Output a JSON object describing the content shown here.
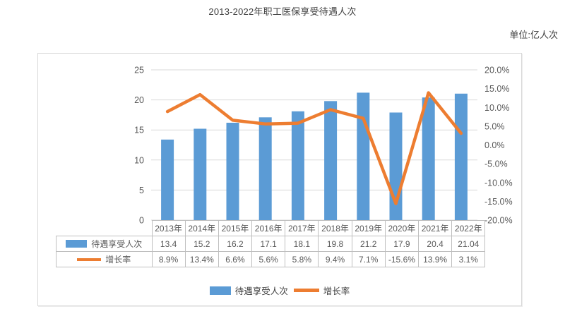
{
  "title": "2013-2022年职工医保享受待遇人次",
  "unit_label": "单位:亿人次",
  "chart_data": {
    "type": "bar+line combo with data table",
    "categories": [
      "2013年",
      "2014年",
      "2015年",
      "2016年",
      "2017年",
      "2018年",
      "2019年",
      "2020年",
      "2021年",
      "2022年"
    ],
    "series": [
      {
        "name": "待遇享受人次",
        "chart": "bar",
        "color": "#5B9BD5",
        "axis": "left",
        "values": [
          13.4,
          15.2,
          16.2,
          17.1,
          18.1,
          19.8,
          21.2,
          17.9,
          20.4,
          21.04
        ],
        "display": [
          "13.4",
          "15.2",
          "16.2",
          "17.1",
          "18.1",
          "19.8",
          "21.2",
          "17.9",
          "20.4",
          "21.04"
        ]
      },
      {
        "name": "增长率",
        "chart": "line",
        "color": "#ED7D31",
        "axis": "right",
        "values": [
          8.9,
          13.4,
          6.6,
          5.6,
          5.8,
          9.4,
          7.1,
          -15.6,
          13.9,
          3.1
        ],
        "display": [
          "8.9%",
          "13.4%",
          "6.6%",
          "5.6%",
          "5.8%",
          "9.4%",
          "7.1%",
          "-15.6%",
          "13.9%",
          "3.1%"
        ]
      }
    ],
    "left_axis": {
      "min": 0,
      "max": 25,
      "tick_labels": [
        "25",
        "20",
        "15",
        "10",
        "5",
        "0"
      ]
    },
    "right_axis": {
      "min": -20,
      "max": 20,
      "tick_labels": [
        "20.0%",
        "15.0%",
        "10.0%",
        "5.0%",
        "0.0%",
        "-5.0%",
        "-10.0%",
        "-15.0%",
        "-20.0%"
      ]
    },
    "grid": true,
    "legend_position": "bottom",
    "data_table_shown": true
  },
  "legend": {
    "items": [
      {
        "label": "待遇享受人次",
        "swatch": "bar-swatch"
      },
      {
        "label": "增长率",
        "swatch": "line-swatch"
      }
    ]
  },
  "colors": {
    "bar": "#5B9BD5",
    "line": "#ED7D31",
    "grid": "#D9D9D9",
    "axis_text": "#595959",
    "table_border": "#BFBFBF",
    "chart_border": "#D9D9D9",
    "title_text": "#3F3F3F"
  }
}
